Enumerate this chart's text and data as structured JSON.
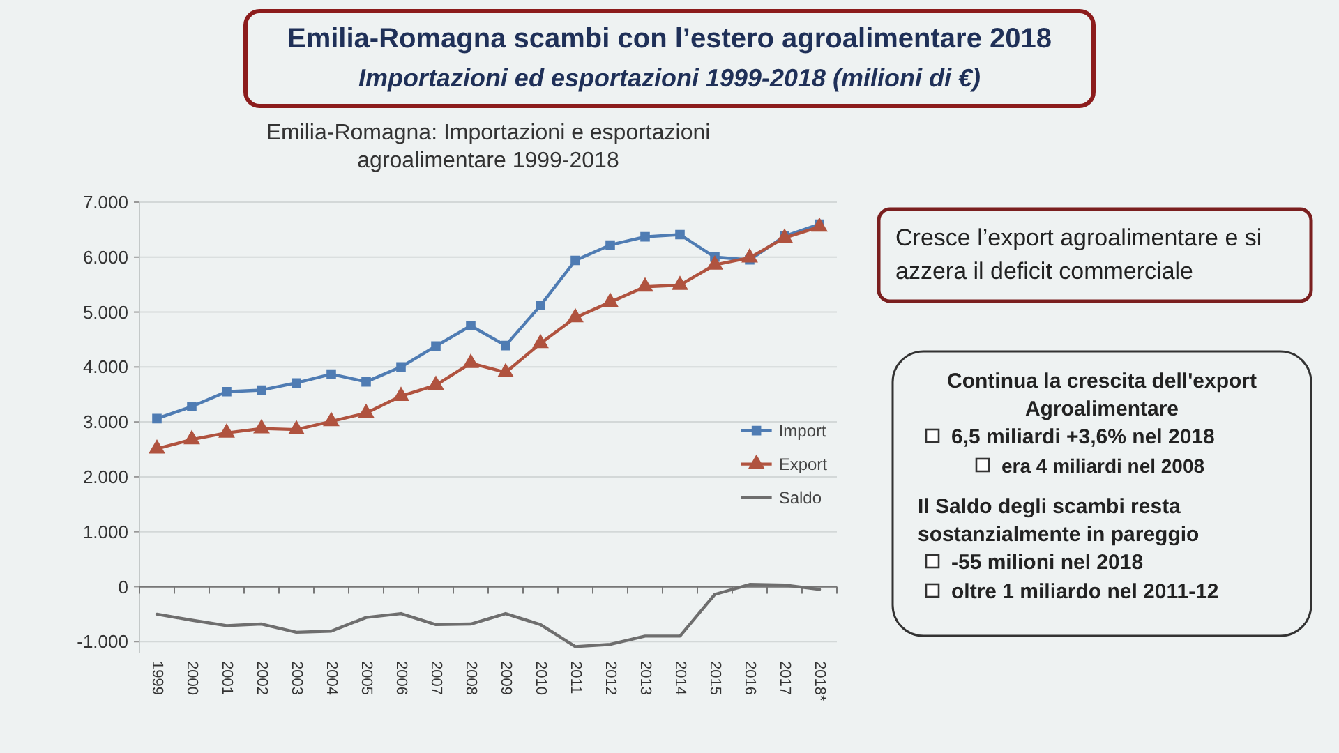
{
  "chart_data": {
    "type": "line",
    "title": "Emilia-Romagna scambi con l’estero agroalimentare 2018",
    "subtitle": "Importazioni ed esportazioni 1999-2018 (milioni di €)",
    "categories": [
      "1999",
      "2000",
      "2001",
      "2002",
      "2003",
      "2004",
      "2005",
      "2006",
      "2007",
      "2008",
      "2009",
      "2010",
      "2011",
      "2012",
      "2013",
      "2014",
      "2015",
      "2016",
      "2017",
      "2018*"
    ],
    "series": [
      {
        "name": "Import",
        "color": "#4f7cb3",
        "marker": "square",
        "values": [
          3060,
          3280,
          3550,
          3580,
          3710,
          3870,
          3730,
          4000,
          4380,
          4750,
          4390,
          5120,
          5940,
          6220,
          6370,
          6410,
          6000,
          5950,
          6380,
          6600
        ]
      },
      {
        "name": "Export",
        "color": "#b0533f",
        "marker": "triangle",
        "values": [
          2510,
          2680,
          2800,
          2880,
          2860,
          3010,
          3160,
          3470,
          3670,
          4070,
          3900,
          4430,
          4900,
          5180,
          5460,
          5490,
          5860,
          5990,
          6350,
          6550
        ]
      },
      {
        "name": "Saldo",
        "color": "#6e6e6e",
        "marker": "none",
        "values": [
          -500,
          -610,
          -710,
          -680,
          -830,
          -810,
          -560,
          -490,
          -690,
          -680,
          -490,
          -690,
          -1090,
          -1050,
          -900,
          -900,
          -140,
          40,
          30,
          -50
        ]
      }
    ],
    "ylim": [
      -1200,
      7000
    ],
    "yticks": [
      {
        "value": -1000,
        "label": "-1.000"
      },
      0,
      {
        "value": 1000,
        "label": "1.000"
      },
      {
        "value": 2000,
        "label": "2.000"
      },
      {
        "value": 3000,
        "label": "3.000"
      },
      {
        "value": 4000,
        "label": "4.000"
      },
      {
        "value": 5000,
        "label": "5.000"
      },
      {
        "value": 6000,
        "label": "6.000"
      },
      {
        "value": 7000,
        "label": "7.000"
      }
    ],
    "grid": "y",
    "legend": "right",
    "annotations": [
      "Emilia-Romagna: Importazioni e esportazioni agroalimentare 1999-2018",
      "Cresce l’export agroalimentare e si azzera il deficit commerciale",
      "Continua la crescita dell'export Agroalimentare",
      "6,5 miliardi +3,6% nel 2018",
      "era 4 miliardi nel 2008",
      "Il Saldo degli scambi resta sostanzialmente in pareggio",
      "-55 milioni nel 2018",
      "oltre 1 miliardo nel 2011-12"
    ]
  }
}
